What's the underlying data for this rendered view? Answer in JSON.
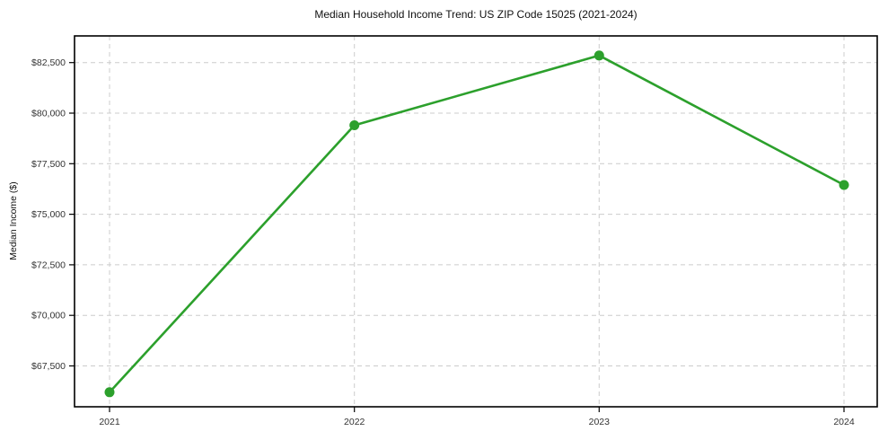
{
  "page": {
    "background_color": "#ffffff"
  },
  "chart_data": {
    "type": "line",
    "title": "Median Household Income Trend: US ZIP Code 15025 (2021-2024)",
    "xlabel": "",
    "ylabel": "Median Income ($)",
    "x": [
      2021,
      2022,
      2023,
      2024
    ],
    "series": [
      {
        "name": "Median Household Income",
        "values": [
          66200,
          79400,
          82850,
          76450
        ]
      }
    ],
    "xtick_labels": [
      "2021",
      "2022",
      "2023",
      "2024"
    ],
    "yticks": [
      67500,
      70000,
      72500,
      75000,
      77500,
      80000,
      82500
    ],
    "ytick_labels": [
      "$67,500",
      "$70,000",
      "$72,500",
      "$75,000",
      "$77,500",
      "$80,000",
      "$82,500"
    ],
    "ylim": [
      65480,
      83820
    ],
    "grid": true,
    "grid_style": "dashed",
    "legend": false,
    "marker": "circle",
    "line_color": "#2ca02c",
    "marker_color": "#2ca02c",
    "grid_color": "#cccccc",
    "axis_color": "#000000",
    "tick_label_color": "#333333",
    "title_color": "#111111"
  }
}
